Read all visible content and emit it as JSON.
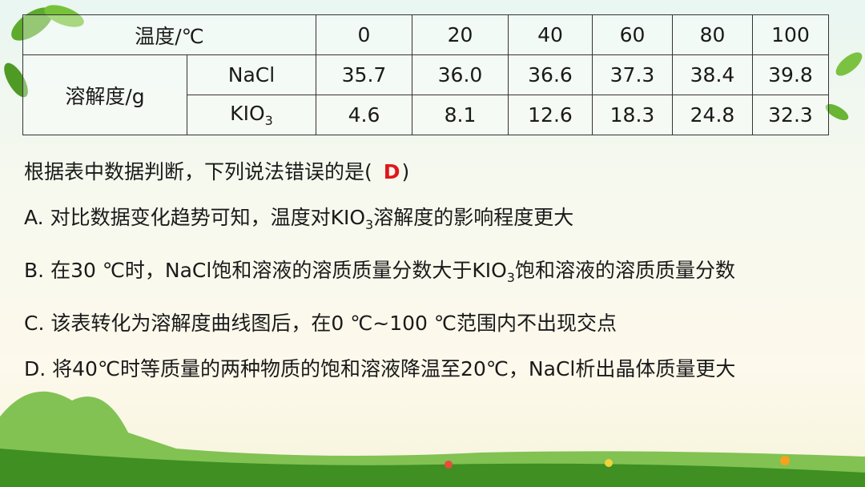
{
  "table": {
    "header": [
      "温度/℃",
      "0",
      "20",
      "40",
      "60",
      "80",
      "100"
    ],
    "row_label": "溶解度/g",
    "rows": [
      {
        "name": "NaCl",
        "values": [
          "35.7",
          "36.0",
          "36.6",
          "37.3",
          "38.4",
          "39.8"
        ]
      },
      {
        "name": "KIO",
        "name_sub": "3",
        "values": [
          "4.6",
          "8.1",
          "12.6",
          "18.3",
          "24.8",
          "32.3"
        ]
      }
    ]
  },
  "question": {
    "stem": "根据表中数据判断，下列说法错误的是(",
    "answer": "D",
    "close": ")"
  },
  "options": [
    {
      "letter": "A.",
      "parts": [
        "对比数据变化趋势可知，温度对KIO",
        "3",
        "溶解度的影响程度更大"
      ]
    },
    {
      "letter": "B.",
      "parts": [
        "在30 ℃时，NaCl饱和溶液的溶质质量分数大于KIO",
        "3",
        "饱和溶液的溶质质量分数"
      ]
    },
    {
      "letter": "C.",
      "parts": [
        "该表转化为溶解度曲线图后，在0 ℃~100 ℃范围内不出现交点"
      ]
    },
    {
      "letter": "D.",
      "parts": [
        "将40℃时等质量的两种物质的饱和溶液降温至20℃，NaCl析出晶体质量更大"
      ]
    }
  ]
}
